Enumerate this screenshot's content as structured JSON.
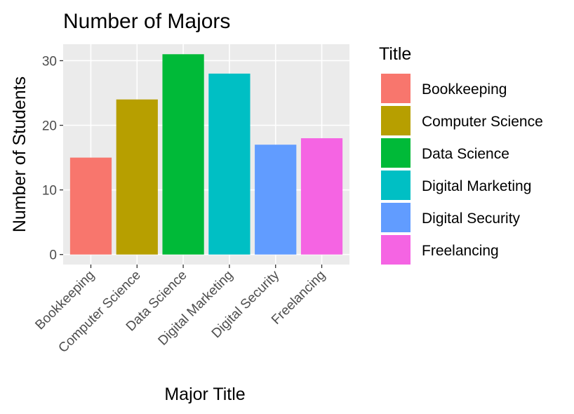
{
  "chart_data": {
    "type": "bar",
    "title": "Number of Majors",
    "xlabel": "Major Title",
    "ylabel": "Number of Students",
    "categories": [
      "Bookkeeping",
      "Computer Science",
      "Data Science",
      "Digital Marketing",
      "Digital Security",
      "Freelancing"
    ],
    "values": [
      15,
      24,
      31,
      28,
      17,
      18
    ],
    "colors": [
      "#F8766D",
      "#B79F00",
      "#00BA38",
      "#00BFC4",
      "#619CFF",
      "#F564E3"
    ],
    "ylim": [
      -1.55,
      32.55
    ],
    "yticks": [
      0,
      10,
      20,
      30
    ],
    "grid": true,
    "panel_background": "#EBEBEB",
    "legend": {
      "title": "Title",
      "position": "right",
      "entries": [
        "Bookkeeping",
        "Computer Science",
        "Data Science",
        "Digital Marketing",
        "Digital Security",
        "Freelancing"
      ]
    }
  }
}
